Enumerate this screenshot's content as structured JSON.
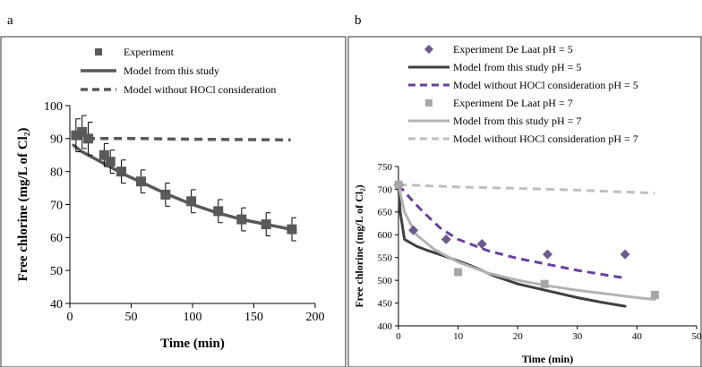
{
  "chart_data": [
    {
      "panel": "a",
      "type": "line",
      "xlabel": "Time (min)",
      "ylabel": "Free chlorine (mg/L of Cl₂)",
      "xlim": [
        0,
        200
      ],
      "ylim": [
        40,
        100
      ],
      "x_ticks": [
        0,
        50,
        100,
        150,
        200
      ],
      "y_ticks": [
        40,
        50,
        60,
        70,
        80,
        90,
        100
      ],
      "legend_position": "top",
      "series": [
        {
          "name": "Experiment",
          "kind": "marker-square",
          "color": "#595959",
          "x": [
            5,
            10,
            15,
            28,
            33,
            42,
            58,
            78,
            99,
            121,
            140,
            160,
            181
          ],
          "y": [
            91,
            92,
            90,
            85,
            83,
            80,
            77,
            73,
            71,
            68,
            65.5,
            64,
            62.5
          ],
          "err": [
            5,
            5,
            5,
            3.5,
            3.5,
            3.5,
            3.5,
            3.5,
            3.5,
            3.5,
            3.5,
            3.5,
            3.5
          ]
        },
        {
          "name": "Model from this study",
          "kind": "line-solid",
          "color": "#595959",
          "x": [
            3,
            10,
            20,
            30,
            45,
            60,
            80,
            100,
            120,
            140,
            160,
            180
          ],
          "y": [
            88,
            86,
            84,
            82,
            79,
            76.5,
            73,
            70,
            67.5,
            65.5,
            64,
            62.5
          ]
        },
        {
          "name": "Model without HOCl consideration",
          "kind": "line-dashed",
          "color": "#595959",
          "x": [
            3,
            20,
            60,
            100,
            140,
            180
          ],
          "y": [
            90,
            90,
            90,
            89.8,
            89.7,
            89.6
          ]
        }
      ]
    },
    {
      "panel": "b",
      "type": "line",
      "xlabel": "Time (min)",
      "ylabel": "Free chlorine (mg/L of Cl₂)",
      "xlim": [
        0,
        50
      ],
      "ylim": [
        400,
        750
      ],
      "x_ticks": [
        0,
        10,
        20,
        30,
        40,
        50
      ],
      "y_ticks": [
        400,
        450,
        500,
        550,
        600,
        650,
        700,
        750
      ],
      "legend_position": "top",
      "series": [
        {
          "name": "Experiment De Laat pH = 5",
          "kind": "marker-diamond",
          "color": "#6b5b8c",
          "x": [
            0,
            2.5,
            8,
            14,
            25,
            38
          ],
          "y": [
            710,
            610,
            590,
            580,
            557,
            557
          ]
        },
        {
          "name": "Model from this study pH = 5",
          "kind": "line-solid",
          "color": "#404040",
          "x": [
            0,
            0.3,
            1,
            3,
            5,
            8,
            12,
            16,
            20,
            25,
            30,
            34,
            38
          ],
          "y": [
            710,
            650,
            590,
            575,
            565,
            552,
            533,
            510,
            492,
            477,
            462,
            452,
            443
          ]
        },
        {
          "name": "Model without HOCl consideration pH = 5",
          "kind": "line-dashed",
          "color": "#6b3fa0",
          "x": [
            0,
            2,
            4,
            7,
            10,
            15,
            20,
            25,
            30,
            35,
            38
          ],
          "y": [
            710,
            680,
            652,
            615,
            590,
            565,
            548,
            535,
            522,
            511,
            505
          ]
        },
        {
          "name": "Experiment De Laat pH = 7",
          "kind": "marker-square",
          "color": "#a6a6a6",
          "x": [
            0,
            10,
            24.5,
            43
          ],
          "y": [
            710,
            518,
            492,
            468
          ]
        },
        {
          "name": "Model from this study pH = 7",
          "kind": "line-solid",
          "color": "#b3b3b3",
          "x": [
            0,
            1,
            3,
            6,
            10,
            15,
            20,
            25,
            30,
            35,
            40,
            43
          ],
          "y": [
            710,
            650,
            600,
            568,
            540,
            516,
            500,
            488,
            478,
            470,
            462,
            458
          ]
        },
        {
          "name": "Model without HOCl consideration pH = 7",
          "kind": "line-dashed",
          "color": "#bfbfbf",
          "x": [
            0,
            10,
            20,
            30,
            40,
            43
          ],
          "y": [
            710,
            705,
            702,
            698,
            693,
            691
          ]
        }
      ]
    }
  ]
}
